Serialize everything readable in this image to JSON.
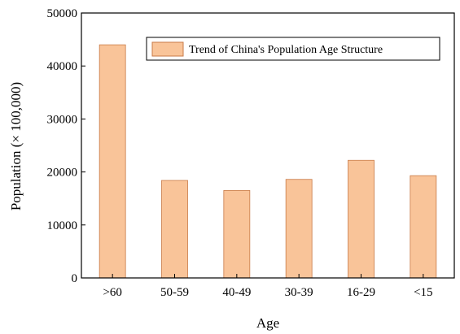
{
  "chart_data": {
    "type": "bar",
    "categories": [
      ">60",
      "50-59",
      "40-49",
      "30-39",
      "16-29",
      "<15"
    ],
    "series": [
      {
        "name": "Trend of China's Population Age Structure",
        "values": [
          44000,
          18400,
          16500,
          18600,
          22200,
          19300
        ],
        "color": "#f9c499",
        "stroke": "#c87a47"
      }
    ],
    "xlabel": "Age",
    "ylabel": "Population  (× 100,000)",
    "ylim": [
      0,
      50000
    ],
    "yticks": [
      0,
      10000,
      20000,
      30000,
      40000,
      50000
    ],
    "legend_position": "top-right",
    "grid": false
  }
}
